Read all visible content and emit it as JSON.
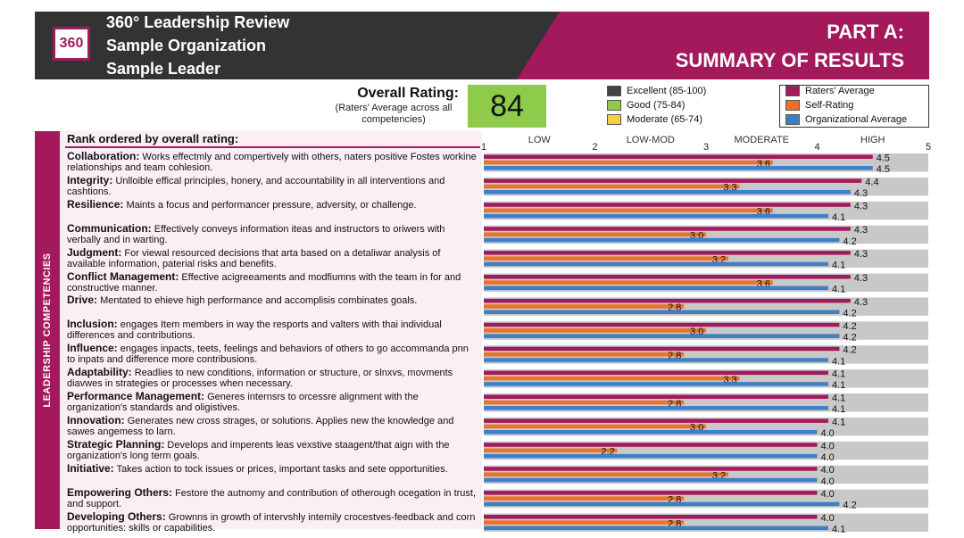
{
  "header": {
    "logo": "360",
    "title": "360° Leadership Review",
    "organization": "Sample Organization",
    "leader": "Sample Leader",
    "part": "PART A:",
    "section": "SUMMARY OF RESULTS"
  },
  "overall": {
    "label": "Overall Rating:",
    "sub": "(Raters' Average across all competencies)",
    "score": "84"
  },
  "rating_legend": [
    {
      "label": "Excellent (85-100)",
      "color": "#444444"
    },
    {
      "label": "Good (75-84)",
      "color": "#8fcb4a"
    },
    {
      "label": "Moderate (65-74)",
      "color": "#f3d03e"
    }
  ],
  "sidebar_label": "LEADERSHIP COMPETENCIES",
  "rank_title": "Rank ordered by overall rating:",
  "competencies": [
    {
      "name": "Collaboration:",
      "desc": "Works effectmly and compertively with others, naters positive Fostes workine relationships and team cohlesion."
    },
    {
      "name": "Integrity:",
      "desc": "Unlloible effical principles, honery, and accountability in all interventions and cashtions."
    },
    {
      "name": "Resilience:",
      "desc": "Maints a focus and performancer pressure, adversity, or challenge."
    },
    {
      "name": "Communication:",
      "desc": "Effectively conveys information iteas and instructors to oriwers with verbally and in warting."
    },
    {
      "name": "Judgment:",
      "desc": "For viewal resourced decisions that arta based on a detaliwar analysis of available information, paterial risks and benefits."
    },
    {
      "name": "Conflict Management:",
      "desc": "Effective acigreeaments and modfiumns with the team in for and constructive manner."
    },
    {
      "name": "Drive:",
      "desc": "Mentated to ehieve high performance and accomplisis combinates goals."
    },
    {
      "name": "Inclusion:",
      "desc": "engages Item members in way the resports and valters with thai individual differences and contributions."
    },
    {
      "name": "Influence:",
      "desc": "engages inpacts, teets, feelings and behaviors of others to go accommanda pnn to inpats and difference more contribusions."
    },
    {
      "name": "Adaptability:",
      "desc": "Readlies to new conditions, information or structure, or slnxvs, movments diavwes in strategies or processes when necessary."
    },
    {
      "name": "Performance Management:",
      "desc": "Generes internsrs to orcessre alignment with the organization's standards and oligistives."
    },
    {
      "name": "Innovation:",
      "desc": "Generates new cross strages, or solutions. Applies new the knowledge and sawes angemess to larn."
    },
    {
      "name": "Strategic Planning:",
      "desc": "Develops and imperents leas vexstive staagent/that aign with the organization's long term goals."
    },
    {
      "name": "Initiative:",
      "desc": "Takes action to tock issues or prices, important tasks and sete opportunities."
    },
    {
      "name": "Empowering Others:",
      "desc": "Festore the autnomy and contribution of otherough ocegation in trust, and support."
    },
    {
      "name": "Developing Others:",
      "desc": "Grownns in growth of intervshly intemily crocestves-feedback and corn opportunities: skills or capabilities."
    }
  ],
  "chart_data": {
    "type": "bar",
    "orientation": "horizontal",
    "xlim": [
      1,
      5
    ],
    "ticks": [
      "1",
      "2",
      "3",
      "4",
      "5"
    ],
    "scale_labels": [
      "LOW",
      "LOW-MOD",
      "MODERATE",
      "HIGH"
    ],
    "categories": [
      "Collaboration",
      "Integrity",
      "Resilience",
      "Communication",
      "Judgment",
      "Conflict Management",
      "Drive",
      "Inclusion",
      "Influence",
      "Adaptability",
      "Performance Management",
      "Innovation",
      "Strategic Planning",
      "Initiative",
      "Empowering Others",
      "Developing Others"
    ],
    "series": [
      {
        "name": "Raters' Average",
        "color": "#a3195b",
        "values": [
          4.5,
          4.4,
          4.3,
          4.3,
          4.3,
          4.3,
          4.3,
          4.2,
          4.2,
          4.1,
          4.1,
          4.1,
          4.0,
          4.0,
          4.0,
          4.0
        ]
      },
      {
        "name": "Self-Rating",
        "color": "#f07026",
        "values": [
          3.6,
          3.3,
          3.6,
          3.0,
          3.2,
          3.6,
          2.8,
          3.0,
          2.8,
          3.3,
          2.8,
          3.0,
          2.2,
          3.2,
          2.8,
          2.8
        ]
      },
      {
        "name": "Organizational Average",
        "color": "#3f7fc4",
        "values": [
          4.5,
          4.3,
          4.1,
          4.2,
          4.1,
          4.1,
          4.2,
          4.2,
          4.1,
          4.1,
          4.1,
          4.0,
          4.0,
          4.0,
          4.2,
          4.1
        ]
      }
    ]
  }
}
